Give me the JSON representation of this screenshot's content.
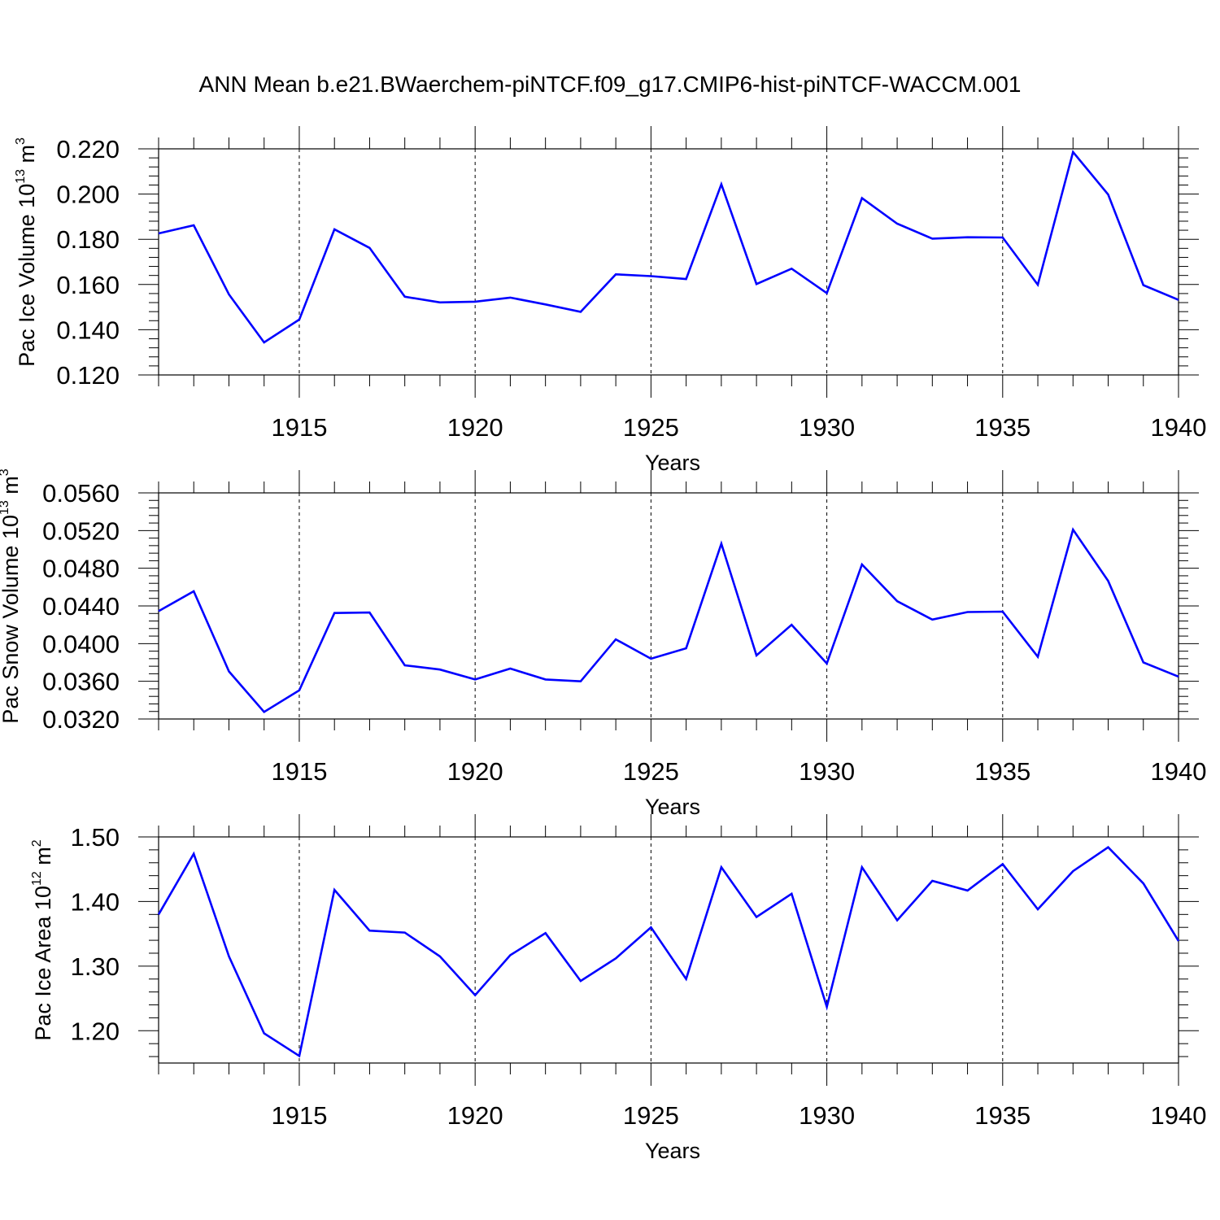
{
  "title": "ANN Mean b.e21.BWaerchem-piNTCF.f09_g17.CMIP6-hist-piNTCF-WACCM.001",
  "line_color": "#0000ff",
  "chart_data": [
    {
      "type": "line",
      "title": "ANN Mean b.e21.BWaerchem-piNTCF.f09_g17.CMIP6-hist-piNTCF-WACCM.001",
      "xlabel": "Years",
      "ylabel": {
        "text": "Pac Ice Volume 10",
        "sup": "13",
        "unit": " m",
        "unit_sup": "3"
      },
      "xlim": [
        1911,
        1940
      ],
      "ylim": [
        0.12,
        0.22
      ],
      "xticks": [
        "1915",
        "1920",
        "1925",
        "1930",
        "1935",
        "1940"
      ],
      "yticks": [
        "0.120",
        "0.140",
        "0.160",
        "0.180",
        "0.200",
        "0.220"
      ],
      "x": [
        1911,
        1912,
        1913,
        1914,
        1915,
        1916,
        1917,
        1918,
        1919,
        1920,
        1921,
        1922,
        1923,
        1924,
        1925,
        1926,
        1927,
        1928,
        1929,
        1930,
        1931,
        1932,
        1933,
        1934,
        1935,
        1936,
        1937,
        1938,
        1939,
        1940
      ],
      "values": [
        0.1826,
        0.1862,
        0.1556,
        0.1344,
        0.1445,
        0.1844,
        0.1762,
        0.1546,
        0.1521,
        0.1524,
        0.1542,
        0.1512,
        0.1479,
        0.1645,
        0.1637,
        0.1624,
        0.2043,
        0.1602,
        0.167,
        0.1562,
        0.1982,
        0.1869,
        0.1803,
        0.1809,
        0.1808,
        0.1599,
        0.2186,
        0.1998,
        0.1597,
        0.1532
      ]
    },
    {
      "type": "line",
      "title": "",
      "xlabel": "Years",
      "ylabel": {
        "text": "Pac Snow Volume 10",
        "sup": "13",
        "unit": " m",
        "unit_sup": "3"
      },
      "xlim": [
        1911,
        1940
      ],
      "ylim": [
        0.032,
        0.056
      ],
      "xticks": [
        "1915",
        "1920",
        "1925",
        "1930",
        "1935",
        "1940"
      ],
      "yticks": [
        "0.0320",
        "0.0360",
        "0.0400",
        "0.0440",
        "0.0480",
        "0.0520",
        "0.0560"
      ],
      "x": [
        1911,
        1912,
        1913,
        1914,
        1915,
        1916,
        1917,
        1918,
        1919,
        1920,
        1921,
        1922,
        1923,
        1924,
        1925,
        1926,
        1927,
        1928,
        1929,
        1930,
        1931,
        1932,
        1933,
        1934,
        1935,
        1936,
        1937,
        1938,
        1939,
        1940
      ],
      "values": [
        0.04345,
        0.04555,
        0.03705,
        0.03275,
        0.03505,
        0.04325,
        0.0433,
        0.0377,
        0.03725,
        0.0362,
        0.03735,
        0.0362,
        0.036,
        0.04045,
        0.0384,
        0.0395,
        0.0506,
        0.03875,
        0.042,
        0.0379,
        0.0484,
        0.0445,
        0.04255,
        0.04335,
        0.0434,
        0.0386,
        0.0521,
        0.04665,
        0.038,
        0.0365
      ]
    },
    {
      "type": "line",
      "title": "",
      "xlabel": "Years",
      "ylabel": {
        "text": "Pac Ice Area 10",
        "sup": "12",
        "unit": " m",
        "unit_sup": "2"
      },
      "xlim": [
        1911,
        1940
      ],
      "ylim": [
        1.15,
        1.5
      ],
      "xticks": [
        "1915",
        "1920",
        "1925",
        "1930",
        "1935",
        "1940"
      ],
      "yticks": [
        "1.20",
        "1.30",
        "1.40",
        "1.50"
      ],
      "x": [
        1911,
        1912,
        1913,
        1914,
        1915,
        1916,
        1917,
        1918,
        1919,
        1920,
        1921,
        1922,
        1923,
        1924,
        1925,
        1926,
        1927,
        1928,
        1929,
        1930,
        1931,
        1932,
        1933,
        1934,
        1935,
        1936,
        1937,
        1938,
        1939,
        1940
      ],
      "values": [
        1.38,
        1.474,
        1.315,
        1.196,
        1.161,
        1.418,
        1.355,
        1.352,
        1.315,
        1.255,
        1.317,
        1.351,
        1.277,
        1.312,
        1.36,
        1.28,
        1.453,
        1.376,
        1.412,
        1.237,
        1.453,
        1.371,
        1.432,
        1.417,
        1.458,
        1.388,
        1.447,
        1.484,
        1.428,
        1.339
      ]
    }
  ]
}
